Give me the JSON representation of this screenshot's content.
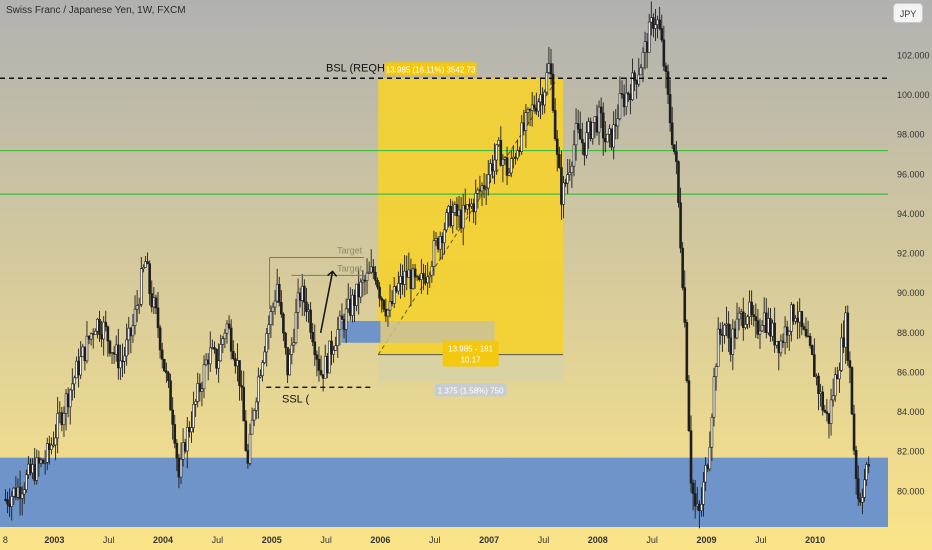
{
  "header": {
    "symbol_title": "Swiss Franc / Japanese Yen, 1W, FXCM",
    "currency_button": "JPY"
  },
  "chart_data": {
    "type": "candlestick",
    "title": "Swiss Franc / Japanese Yen, 1W, FXCM",
    "y_axis": {
      "ticks": [
        "80.000",
        "82.000",
        "84.000",
        "86.000",
        "88.000",
        "90.000",
        "92.000",
        "94.000",
        "96.000",
        "98.000",
        "100.000",
        "102.000"
      ],
      "range": [
        78.2,
        104.8
      ]
    },
    "x_axis": {
      "ticks": [
        "8",
        "2003",
        "Jul",
        "2004",
        "Jul",
        "2005",
        "Jul",
        "2006",
        "Jul",
        "2007",
        "Jul",
        "2008",
        "Jul",
        "2009",
        "Jul",
        "2010"
      ],
      "range": [
        2002.5,
        2010.67
      ]
    },
    "price_path": [
      [
        2002.55,
        79.6
      ],
      [
        2002.68,
        80.2
      ],
      [
        2002.8,
        81.0
      ],
      [
        2002.92,
        81.6
      ],
      [
        2003.0,
        82.8
      ],
      [
        2003.1,
        84.5
      ],
      [
        2003.2,
        86.0
      ],
      [
        2003.3,
        87.4
      ],
      [
        2003.38,
        88.6
      ],
      [
        2003.46,
        88.2
      ],
      [
        2003.55,
        87.0
      ],
      [
        2003.62,
        86.5
      ],
      [
        2003.72,
        88.2
      ],
      [
        2003.8,
        90.6
      ],
      [
        2003.84,
        91.6
      ],
      [
        2003.88,
        90.0
      ],
      [
        2003.95,
        88.5
      ],
      [
        2004.02,
        86.0
      ],
      [
        2004.1,
        83.5
      ],
      [
        2004.15,
        80.5
      ],
      [
        2004.2,
        82.5
      ],
      [
        2004.28,
        84.0
      ],
      [
        2004.35,
        85.5
      ],
      [
        2004.42,
        87.0
      ],
      [
        2004.5,
        86.5
      ],
      [
        2004.58,
        88.5
      ],
      [
        2004.64,
        87.5
      ],
      [
        2004.7,
        86.0
      ],
      [
        2004.75,
        83.0
      ],
      [
        2004.78,
        81.2
      ],
      [
        2004.84,
        84.5
      ],
      [
        2004.9,
        86.5
      ],
      [
        2004.95,
        88.0
      ],
      [
        2005.0,
        89.0
      ],
      [
        2005.05,
        90.5
      ],
      [
        2005.1,
        88.0
      ],
      [
        2005.15,
        86.0
      ],
      [
        2005.2,
        88.0
      ],
      [
        2005.26,
        90.0
      ],
      [
        2005.32,
        89.5
      ],
      [
        2005.38,
        88.0
      ],
      [
        2005.45,
        86.0
      ],
      [
        2005.5,
        86.4
      ],
      [
        2005.58,
        87.8
      ],
      [
        2005.66,
        88.6
      ],
      [
        2005.75,
        89.6
      ],
      [
        2005.85,
        90.5
      ],
      [
        2005.95,
        91.2
      ],
      [
        2006.0,
        90.0
      ],
      [
        2006.08,
        89.0
      ],
      [
        2006.15,
        90.2
      ],
      [
        2006.25,
        91.0
      ],
      [
        2006.35,
        90.2
      ],
      [
        2006.45,
        91.5
      ],
      [
        2006.55,
        93.0
      ],
      [
        2006.65,
        94.0
      ],
      [
        2006.75,
        93.8
      ],
      [
        2006.85,
        94.5
      ],
      [
        2006.95,
        95.5
      ],
      [
        2007.02,
        96.5
      ],
      [
        2007.1,
        97.2
      ],
      [
        2007.18,
        96.0
      ],
      [
        2007.26,
        97.5
      ],
      [
        2007.34,
        98.5
      ],
      [
        2007.42,
        99.6
      ],
      [
        2007.5,
        100.2
      ],
      [
        2007.55,
        101.4
      ],
      [
        2007.58,
        100.6
      ],
      [
        2007.62,
        97.0
      ],
      [
        2007.67,
        94.8
      ],
      [
        2007.72,
        96.0
      ],
      [
        2007.8,
        98.0
      ],
      [
        2007.88,
        97.5
      ],
      [
        2007.95,
        98.6
      ],
      [
        2008.02,
        98.8
      ],
      [
        2008.08,
        97.5
      ],
      [
        2008.14,
        98.0
      ],
      [
        2008.2,
        99.5
      ],
      [
        2008.28,
        100.2
      ],
      [
        2008.34,
        100.8
      ],
      [
        2008.42,
        102.0
      ],
      [
        2008.48,
        103.2
      ],
      [
        2008.52,
        104.0
      ],
      [
        2008.56,
        103.5
      ],
      [
        2008.6,
        102.0
      ],
      [
        2008.66,
        99.0
      ],
      [
        2008.72,
        96.5
      ],
      [
        2008.78,
        91.0
      ],
      [
        2008.82,
        86.0
      ],
      [
        2008.86,
        80.5
      ],
      [
        2008.9,
        79.0
      ],
      [
        2008.94,
        78.8
      ],
      [
        2008.98,
        80.5
      ],
      [
        2009.02,
        82.0
      ],
      [
        2009.06,
        85.0
      ],
      [
        2009.1,
        87.5
      ],
      [
        2009.16,
        88.5
      ],
      [
        2009.22,
        87.5
      ],
      [
        2009.3,
        88.6
      ],
      [
        2009.38,
        89.2
      ],
      [
        2009.45,
        88.0
      ],
      [
        2009.52,
        89.0
      ],
      [
        2009.6,
        88.0
      ],
      [
        2009.68,
        87.5
      ],
      [
        2009.75,
        88.5
      ],
      [
        2009.82,
        89.2
      ],
      [
        2009.88,
        88.0
      ],
      [
        2009.95,
        87.0
      ],
      [
        2010.0,
        86.0
      ],
      [
        2010.06,
        84.5
      ],
      [
        2010.12,
        83.5
      ],
      [
        2010.18,
        85.5
      ],
      [
        2010.24,
        87.2
      ],
      [
        2010.28,
        88.5
      ],
      [
        2010.32,
        86.0
      ],
      [
        2010.36,
        82.0
      ],
      [
        2010.4,
        79.5
      ],
      [
        2010.45,
        80.5
      ],
      [
        2010.5,
        81.5
      ]
    ],
    "annotations": {
      "bsl_label": "BSL (REQHs)",
      "bsl_price": 100.85,
      "ssl_label": "SSL (",
      "ssl_price": 85.25,
      "ssl_range": [
        2004.95,
        2005.92
      ],
      "target_label": "Target",
      "target_1_price": 91.8,
      "target_2_price": 90.9,
      "green_levels": [
        97.2,
        95.0
      ],
      "long_position": {
        "start": 2005.98,
        "end": 2007.68,
        "entry": 86.9,
        "target": 100.85,
        "stop": 85.55,
        "target_label": "13.985 (16.11%) 3542.73",
        "rr_line_1": "13.985 - 181",
        "rr_line_2": "10.17",
        "stop_label": "1.375 (1.58%) 750"
      },
      "order_block_blue": {
        "start": 2005.64,
        "end": 2006.0,
        "top": 88.6,
        "bottom": 87.5
      },
      "order_block_grey": {
        "start": 2006.0,
        "end": 2007.05,
        "top": 88.6,
        "bottom": 87.5
      },
      "support_zone_blue": {
        "start": 2002.5,
        "end": 2010.67,
        "top": 81.7,
        "bottom": 78.2
      }
    },
    "colors": {
      "candle": "#1e1e1e",
      "bsl_line": "#111111",
      "green_level": "#3fbe3f",
      "target_zone": "#f5d22d",
      "stop_zone": "#d8d3a3",
      "blue_zone": "#6f94c9",
      "grey_zone": "#c9c29a",
      "label_box": "#f2c810",
      "stop_label_box": "#c6cdd2",
      "bg_top": "#b1b1b1",
      "bg_bottom": "#fbe488"
    }
  }
}
